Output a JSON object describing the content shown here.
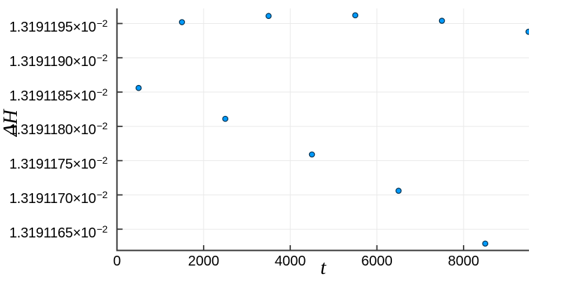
{
  "chart_data": {
    "type": "scatter",
    "title": "",
    "xlabel": "t",
    "ylabel": "ΔH",
    "x": [
      500,
      1500,
      2500,
      3500,
      4500,
      5500,
      6500,
      7500,
      8500,
      9500
    ],
    "y": [
      0.0131911856,
      0.0131911952,
      0.0131911811,
      0.0131911961,
      0.0131911759,
      0.0131911962,
      0.0131911706,
      0.0131911954,
      0.0131911629,
      0.0131911938
    ],
    "xlim": [
      0,
      9510
    ],
    "ylim": [
      0.0131911619,
      0.0131911972
    ],
    "grid": true,
    "legend": "none",
    "xticks": {
      "values": [
        0,
        2000,
        4000,
        6000,
        8000
      ],
      "labels": [
        "0",
        "2000",
        "4000",
        "6000",
        "8000"
      ]
    },
    "yticks": {
      "values": [
        0.013191165,
        0.01319117,
        0.013191175,
        0.01319118,
        0.013191185,
        0.01319119,
        0.013191195
      ],
      "mantissas": [
        "1.3191165",
        "1.3191170",
        "1.3191175",
        "1.3191180",
        "1.3191185",
        "1.3191190",
        "1.3191195"
      ],
      "suffix_base": "×10",
      "suffix_exponent": "−2"
    },
    "colors": {
      "marker_fill": "#009afa",
      "marker_stroke": "#002e4d",
      "grid": "#e9e9e9",
      "spine": "#363636",
      "tick_label": "#000000"
    }
  }
}
